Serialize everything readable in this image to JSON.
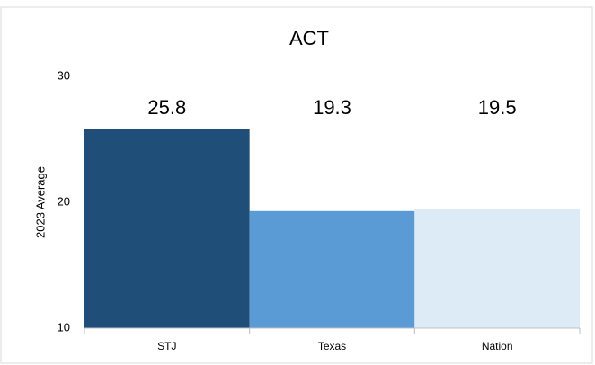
{
  "chart_data": {
    "type": "bar",
    "title": "ACT",
    "ylabel": "2023 Average",
    "categories": [
      "STJ",
      "Texas",
      "Nation"
    ],
    "values": [
      25.8,
      19.3,
      19.5
    ],
    "colors": [
      "#1f4e79",
      "#5b9bd5",
      "#ddebf7"
    ],
    "ylim": [
      10,
      30
    ],
    "yticks": [
      10,
      20,
      30
    ],
    "grid": false
  }
}
